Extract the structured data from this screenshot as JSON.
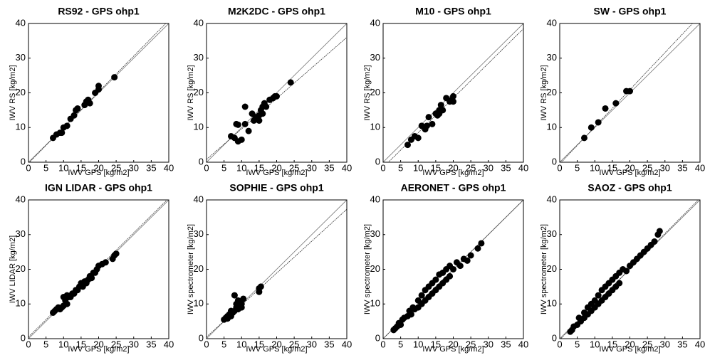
{
  "chart_data": [
    {
      "type": "scatter",
      "title": "RS92 - GPS ohp1",
      "xlabel": "IWV GPS [kg/m2]",
      "ylabel": "IWV RS [kg/m2]",
      "color": "#000000",
      "x": [
        7,
        8,
        9,
        9.5,
        10,
        11,
        12,
        13,
        13.5,
        14,
        16,
        16.5,
        17,
        17.5,
        19,
        20,
        20,
        24.5
      ],
      "y": [
        7,
        8,
        8.5,
        8.5,
        10,
        10.5,
        12.5,
        13.5,
        15,
        15.5,
        16.5,
        17.5,
        18,
        17,
        20,
        21,
        22,
        24.5
      ],
      "fit_line": {
        "slope": 1.03,
        "intercept": -0.3
      },
      "xlim": [
        0,
        40
      ],
      "ylim": [
        0,
        40
      ],
      "xticks": [
        0,
        5,
        10,
        15,
        20,
        25,
        30,
        35,
        40
      ],
      "yticks": [
        0,
        10,
        20,
        30,
        40
      ]
    },
    {
      "type": "scatter",
      "title": "M2K2DC - GPS ohp1",
      "xlabel": "IWV GPS [kg/m2]",
      "ylabel": "IWV RS [kg/m2]",
      "color": "#000000",
      "x": [
        7,
        8,
        8.5,
        9,
        9,
        10,
        11,
        11,
        12,
        13,
        13.5,
        14,
        15,
        15,
        15.5,
        16,
        16,
        16.5,
        17,
        18,
        19,
        19.5,
        20,
        24
      ],
      "y": [
        7.5,
        7,
        11,
        10.8,
        6,
        6.5,
        16,
        11,
        9,
        14,
        12,
        13,
        13.5,
        12,
        15,
        16,
        14,
        17,
        16,
        18,
        18.5,
        19,
        19,
        23
      ],
      "fit_line": {
        "slope": 0.88,
        "intercept": 0.8
      },
      "xlim": [
        0,
        40
      ],
      "ylim": [
        0,
        40
      ],
      "xticks": [
        0,
        5,
        10,
        15,
        20,
        25,
        30,
        35,
        40
      ],
      "yticks": [
        0,
        10,
        20,
        30,
        40
      ]
    },
    {
      "type": "scatter",
      "title": "M10 - GPS ohp1",
      "xlabel": "IWV GPS [kg/m2]",
      "ylabel": "IWV RS [kg/m2]",
      "color": "#000000",
      "x": [
        7,
        8,
        9,
        10,
        11,
        12,
        12.5,
        13,
        14,
        15,
        15.5,
        16,
        16,
        16.5,
        17,
        18,
        19,
        19.5,
        20,
        20
      ],
      "y": [
        5,
        6.5,
        7.5,
        7,
        10.5,
        9.5,
        10.5,
        13,
        11,
        14,
        13.5,
        15,
        14,
        16.5,
        15,
        18.5,
        17.5,
        18,
        19,
        17.5
      ],
      "fit_line": {
        "slope": 1.0,
        "intercept": -1.5
      },
      "xlim": [
        0,
        40
      ],
      "ylim": [
        0,
        40
      ],
      "xticks": [
        0,
        5,
        10,
        15,
        20,
        25,
        30,
        35,
        40
      ],
      "yticks": [
        0,
        10,
        20,
        30,
        40
      ]
    },
    {
      "type": "scatter",
      "title": "SW - GPS ohp1",
      "xlabel": "IWV GPS [kg/m2]",
      "ylabel": "IWV RS [kg/m2]",
      "color": "#000000",
      "x": [
        7,
        9,
        11,
        13,
        16,
        19,
        20
      ],
      "y": [
        7,
        10,
        11.5,
        15.5,
        17,
        20.5,
        20.5
      ],
      "fit_line": {
        "slope": 1.07,
        "intercept": -0.5
      },
      "xlim": [
        0,
        40
      ],
      "ylim": [
        0,
        40
      ],
      "xticks": [
        0,
        5,
        10,
        15,
        20,
        25,
        30,
        35,
        40
      ],
      "yticks": [
        0,
        10,
        20,
        30,
        40
      ]
    },
    {
      "type": "scatter",
      "title": "IGN LIDAR - GPS ohp1",
      "xlabel": "IWV GPS [kg/m2]",
      "ylabel": "IWV LIDAR [kg/m2]",
      "color": "#000000",
      "x": [
        7,
        7.5,
        8,
        8.5,
        9,
        9.5,
        10,
        10,
        10.5,
        11,
        11,
        11.5,
        12,
        12.5,
        13,
        13.5,
        14,
        14.5,
        15,
        15.5,
        16,
        16.5,
        17,
        17.5,
        18,
        18.5,
        19,
        19.5,
        20,
        21,
        22,
        24,
        24.5,
        25
      ],
      "y": [
        7.5,
        8,
        8.5,
        9,
        8.5,
        9,
        9.5,
        12,
        11,
        12.5,
        10,
        12,
        12,
        13,
        13,
        14,
        14,
        15,
        16,
        15,
        16.5,
        16,
        17,
        18,
        17.5,
        19,
        19,
        20,
        21,
        21.5,
        22,
        23,
        24,
        24.5
      ],
      "fit_line": {
        "slope": 1.0,
        "intercept": 0.5
      },
      "xlim": [
        0,
        40
      ],
      "ylim": [
        0,
        40
      ],
      "xticks": [
        0,
        5,
        10,
        15,
        20,
        25,
        30,
        35,
        40
      ],
      "yticks": [
        0,
        10,
        20,
        30,
        40
      ]
    },
    {
      "type": "scatter",
      "title": "SOPHIE - GPS ohp1",
      "xlabel": "IWV GPS [kg/m2]",
      "ylabel": "IWV spectrometer [kg/m2]",
      "color": "#000000",
      "x": [
        5,
        5.5,
        6,
        6,
        6.5,
        7,
        7,
        7.5,
        8,
        8,
        8.5,
        8.5,
        9,
        9,
        9.5,
        10,
        10,
        10.5,
        15,
        15.5,
        15
      ],
      "y": [
        5.5,
        6,
        5.8,
        6.5,
        7,
        6.5,
        8,
        7.5,
        8,
        12.5,
        9,
        10,
        8.5,
        11,
        9.5,
        10,
        9,
        11.5,
        14.5,
        15,
        13.5
      ],
      "fit_line": {
        "slope": 0.92,
        "intercept": 0.5
      },
      "xlim": [
        0,
        40
      ],
      "ylim": [
        0,
        40
      ],
      "xticks": [
        0,
        5,
        10,
        15,
        20,
        25,
        30,
        35,
        40
      ],
      "yticks": [
        0,
        10,
        20,
        30,
        40
      ]
    },
    {
      "type": "scatter",
      "title": "AERONET - GPS ohp1",
      "xlabel": "IWV GPS [kg/m2]",
      "ylabel": "IWV spectrometer [kg/m2]",
      "color": "#000000",
      "x": [
        3,
        3.5,
        4,
        4.5,
        5,
        5.5,
        6,
        7,
        7.5,
        8,
        8.5,
        9,
        10,
        10,
        11,
        11,
        12,
        12,
        13,
        13,
        14,
        14,
        15,
        15,
        16,
        16,
        17,
        17,
        18,
        18,
        19,
        19,
        20,
        21,
        22,
        23,
        24,
        25,
        27,
        28
      ],
      "y": [
        2.5,
        3,
        3.5,
        4.5,
        4,
        5.5,
        6,
        6.5,
        8,
        7,
        9,
        8.5,
        9,
        11,
        10,
        12.5,
        11,
        14,
        12,
        15,
        13,
        16,
        14,
        17,
        15,
        18.5,
        16,
        19,
        17,
        20,
        18,
        21,
        20,
        22,
        21,
        23,
        22.5,
        24,
        26,
        27.5
      ],
      "fit_line": {
        "slope": 1.0,
        "intercept": 0.0
      },
      "xlim": [
        0,
        40
      ],
      "ylim": [
        0,
        40
      ],
      "xticks": [
        0,
        5,
        10,
        15,
        20,
        25,
        30,
        35,
        40
      ],
      "yticks": [
        0,
        10,
        20,
        30,
        40
      ]
    },
    {
      "type": "scatter",
      "title": "SAOZ - GPS ohp1",
      "xlabel": "IWV GPS [kg/m2]",
      "ylabel": "IWV spectrometer [kg/m2]",
      "color": "#000000",
      "x": [
        3,
        3.5,
        4,
        5,
        5.5,
        6,
        7,
        7,
        8,
        8,
        9,
        9,
        10,
        10,
        11,
        11,
        12,
        12,
        13,
        13,
        14,
        14,
        15,
        15,
        16,
        16,
        17,
        17,
        18,
        19,
        20,
        21,
        22,
        23,
        24,
        25,
        26,
        27,
        28,
        28.5
      ],
      "y": [
        2,
        2.5,
        3.5,
        4,
        6,
        5,
        7.5,
        6,
        9,
        7,
        10,
        8,
        11,
        9,
        12.5,
        10,
        14,
        11,
        15,
        12,
        16,
        13,
        17,
        14,
        18,
        15,
        19,
        16,
        20,
        19.5,
        21,
        22,
        23,
        24,
        25,
        26,
        27,
        28,
        30,
        31
      ],
      "fit_line": {
        "slope": 1.02,
        "intercept": -0.3
      },
      "xlim": [
        0,
        40
      ],
      "ylim": [
        0,
        40
      ],
      "xticks": [
        0,
        5,
        10,
        15,
        20,
        25,
        30,
        35,
        40
      ],
      "yticks": [
        0,
        10,
        20,
        30,
        40
      ]
    }
  ]
}
